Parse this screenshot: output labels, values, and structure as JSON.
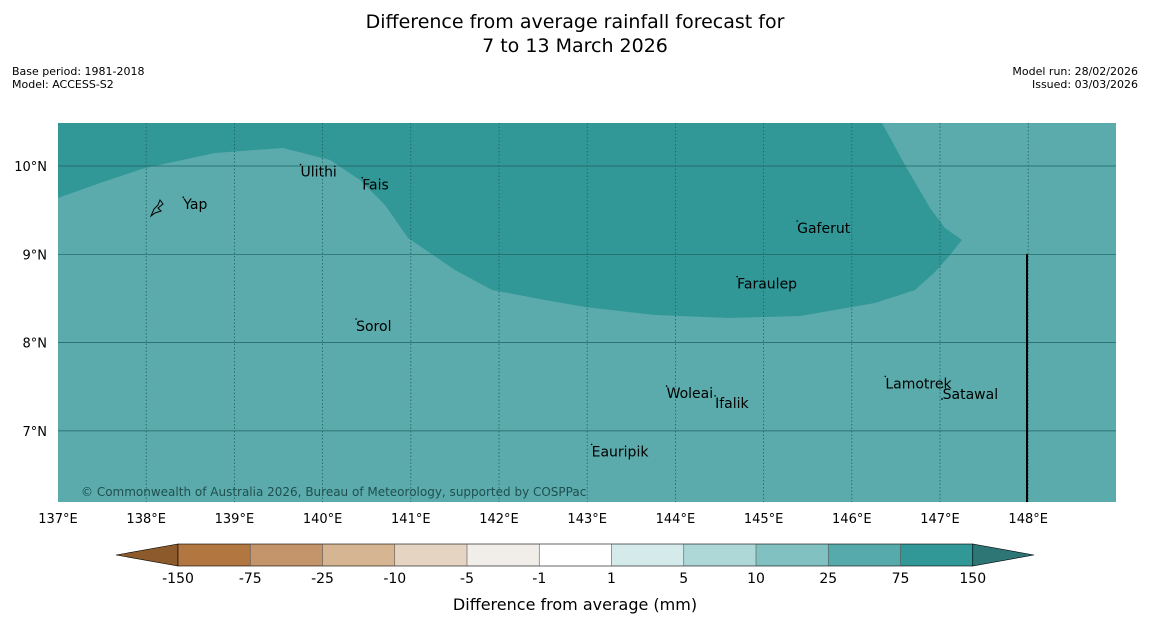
{
  "title": {
    "line1": "Difference from average rainfall forecast for",
    "line2": "7 to 13 March 2026"
  },
  "meta_left": {
    "base_period": "Base period: 1981-2018",
    "model": "Model: ACCESS-S2"
  },
  "meta_right": {
    "model_run": "Model run: 28/02/2026",
    "issued": "Issued: 03/03/2026"
  },
  "lon_labels": [
    "137°E",
    "138°E",
    "139°E",
    "140°E",
    "141°E",
    "142°E",
    "143°E",
    "144°E",
    "145°E",
    "146°E",
    "147°E",
    "148°E"
  ],
  "lat_labels": [
    "10°N",
    "9°N",
    "8°N",
    "7°N"
  ],
  "places": [
    {
      "name": "Yap",
      "lon": 138.42,
      "lat": 9.5
    },
    {
      "name": "Ulithi",
      "lon": 139.75,
      "lat": 9.87
    },
    {
      "name": "Fais",
      "lon": 140.45,
      "lat": 9.72
    },
    {
      "name": "Gaferut",
      "lon": 145.38,
      "lat": 9.23
    },
    {
      "name": "Faraulep",
      "lon": 144.7,
      "lat": 8.6
    },
    {
      "name": "Sorol",
      "lon": 140.38,
      "lat": 8.12
    },
    {
      "name": "Woleai",
      "lon": 143.9,
      "lat": 7.36
    },
    {
      "name": "Ifalik",
      "lon": 144.45,
      "lat": 7.25
    },
    {
      "name": "Lamotrek",
      "lon": 146.38,
      "lat": 7.47
    },
    {
      "name": "Satawal",
      "lon": 147.03,
      "lat": 7.35
    },
    {
      "name": "Eauripik",
      "lon": 143.05,
      "lat": 6.7
    }
  ],
  "copyright": "© Commonwealth of Australia 2026, Bureau of Meteorology, supported by COSPPac",
  "colorbar": {
    "title": "Difference from average (mm)",
    "ticks": [
      "-150",
      "-75",
      "-25",
      "-10",
      "-5",
      "-1",
      "1",
      "5",
      "10",
      "25",
      "75",
      "150"
    ],
    "colors": [
      "#8c5a2b",
      "#b27640",
      "#c4956a",
      "#d6b593",
      "#e6d4c3",
      "#f1ede8",
      "#ffffff",
      "#d5eaea",
      "#aed7d8",
      "#82c1c1",
      "#57aaab",
      "#319797",
      "#2e7576"
    ]
  },
  "colors": {
    "band_25_75": "#5babac",
    "band_75_150": "#319897",
    "grid_line": "#1f6060"
  }
}
